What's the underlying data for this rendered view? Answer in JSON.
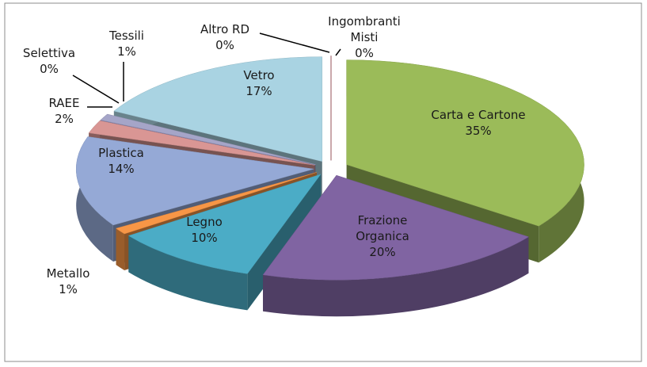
{
  "chart_data": {
    "type": "pie",
    "categories": [
      "Carta e Cartone",
      "Frazione Organica",
      "Legno",
      "Metallo",
      "Plastica",
      "RAEE",
      "Selettiva",
      "Tessili",
      "Vetro",
      "Altro RD",
      "Ingombranti Misti"
    ],
    "values": [
      35,
      20,
      10,
      1,
      14,
      2,
      0,
      1,
      17,
      0,
      0
    ],
    "value_labels": [
      "35%",
      "20%",
      "10%",
      "1%",
      "14%",
      "2%",
      "0%",
      "1%",
      "17%",
      "0%",
      "0%"
    ],
    "colors": [
      "#9bbb59",
      "#8064a2",
      "#4bacc6",
      "#f79646",
      "#95a9d6",
      "#d99694",
      "#8c8cc0",
      "#a5a5c8",
      "#a9d3e2",
      "#1f497d",
      "#c0504d"
    ]
  }
}
